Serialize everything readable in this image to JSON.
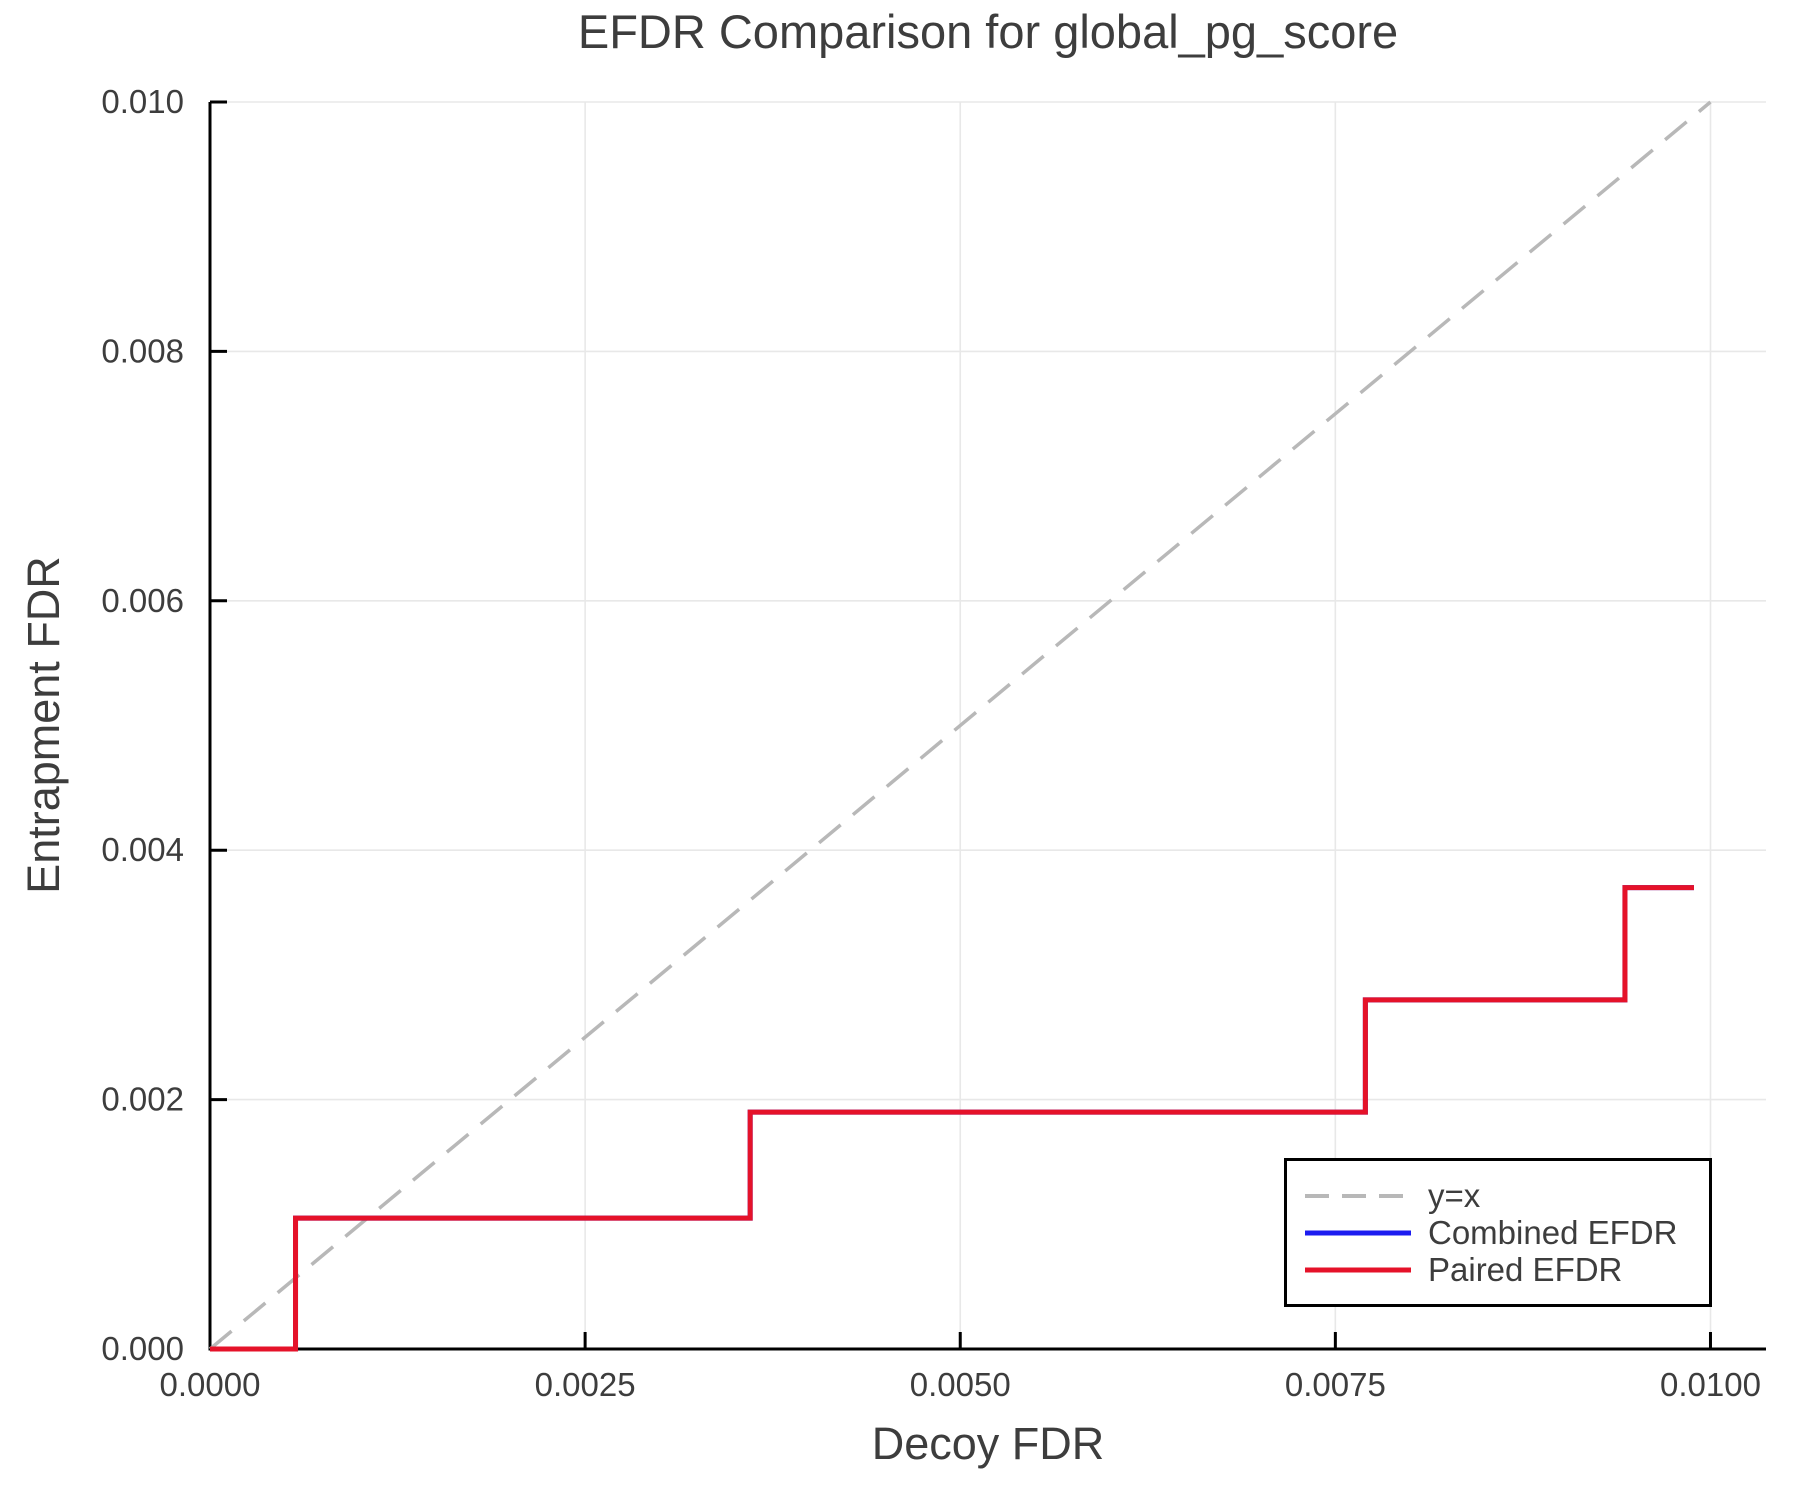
{
  "title": "EFDR Comparison for global_pg_score",
  "xlabel": "Decoy FDR",
  "ylabel": "Entrapment FDR",
  "colors": {
    "paired_red": "#e51229",
    "combined_blue": "#1c1cf0",
    "identity_gray": "#b8b8b8",
    "grid": "#e8e8e8",
    "axis": "#000000",
    "text": "#3d3d3d"
  },
  "legend": {
    "entries": [
      {
        "label": "y=x",
        "color": "#b8b8b8",
        "dash": "24 13",
        "sample_width": 4
      },
      {
        "label": "Combined EFDR",
        "color": "#1c1cf0",
        "sample_width": 5
      },
      {
        "label": "Paired EFDR",
        "color": "#e51229",
        "sample_width": 5
      }
    ]
  },
  "chart_data": {
    "type": "line",
    "title": "EFDR Comparison for global_pg_score",
    "xlabel": "Decoy FDR",
    "ylabel": "Entrapment FDR",
    "xlim": [
      0,
      0.01037
    ],
    "ylim": [
      0,
      0.01
    ],
    "grid": true,
    "legend_position": "lower right",
    "x_ticks": [
      {
        "v": 0.0,
        "label": "0.0000"
      },
      {
        "v": 0.0025,
        "label": "0.0025"
      },
      {
        "v": 0.005,
        "label": "0.0050"
      },
      {
        "v": 0.0075,
        "label": "0.0075"
      },
      {
        "v": 0.01,
        "label": "0.0100"
      }
    ],
    "y_ticks": [
      {
        "v": 0.0,
        "label": "0.000"
      },
      {
        "v": 0.002,
        "label": "0.002"
      },
      {
        "v": 0.004,
        "label": "0.004"
      },
      {
        "v": 0.006,
        "label": "0.006"
      },
      {
        "v": 0.008,
        "label": "0.008"
      },
      {
        "v": 0.01,
        "label": "0.010"
      }
    ],
    "series": [
      {
        "name": "y=x",
        "style": "dashed",
        "color": "#b8b8b8",
        "width": 3.5,
        "dash": "28 16",
        "points": [
          [
            0,
            0
          ],
          [
            0.01,
            0.01
          ]
        ]
      },
      {
        "name": "Combined EFDR",
        "style": "solid",
        "color": "#1c1cf0",
        "width": 5,
        "points": [
          [
            0,
            0
          ],
          [
            0.00057,
            0
          ],
          [
            0.00057,
            0.00105
          ],
          [
            0.0036,
            0.00105
          ],
          [
            0.0036,
            0.0019
          ],
          [
            0.0077,
            0.0019
          ],
          [
            0.0077,
            0.0028
          ],
          [
            0.00943,
            0.0028
          ],
          [
            0.00943,
            0.0037
          ],
          [
            0.00989,
            0.0037
          ]
        ]
      },
      {
        "name": "Paired EFDR",
        "style": "solid",
        "color": "#e51229",
        "width": 5,
        "points": [
          [
            0,
            0
          ],
          [
            0.00057,
            0
          ],
          [
            0.00057,
            0.00105
          ],
          [
            0.0036,
            0.00105
          ],
          [
            0.0036,
            0.0019
          ],
          [
            0.0077,
            0.0019
          ],
          [
            0.0077,
            0.0028
          ],
          [
            0.00943,
            0.0028
          ],
          [
            0.00943,
            0.0037
          ],
          [
            0.00989,
            0.0037
          ]
        ]
      }
    ]
  }
}
